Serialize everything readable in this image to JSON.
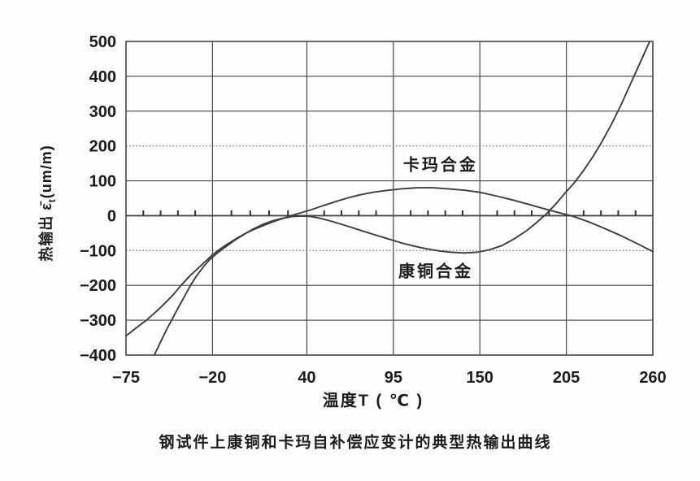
{
  "page": {
    "background": "#fdfdfd"
  },
  "chart_data": {
    "type": "line",
    "title": "钢试件上康铜和卡玛自补偿应变计的典型热输出曲线",
    "xlabel": "温度T ( ℃ )",
    "ylabel": "热输出 ε̄t(um/m)",
    "ylabel_parts": {
      "prefix": "热输出 ",
      "symbol": "ε̄",
      "subscript": "t",
      "unit": "(um/m)"
    },
    "xlim": [
      -75,
      260
    ],
    "ylim": [
      -400,
      500
    ],
    "x_ticks": [
      -75,
      -20,
      40,
      95,
      150,
      205,
      260
    ],
    "y_ticks": [
      500,
      400,
      300,
      200,
      100,
      0,
      -100,
      -200,
      -300,
      -400
    ],
    "grid": true,
    "legend_position": "inline-annotations",
    "minor_tick_divisions": 5,
    "dotted_horizontal_gridlines": [
      200,
      -100
    ],
    "axis_color": "#474747",
    "curve_color": "#3d3d3d",
    "text_color": "#1c1c1c",
    "series": [
      {
        "key": "karma-alloy",
        "name": "卡玛合金",
        "label_pos": {
          "x": 125,
          "y": 150
        },
        "points": [
          [
            -75,
            -345
          ],
          [
            -70,
            -327
          ],
          [
            -65,
            -310
          ],
          [
            -62,
            -300
          ],
          [
            -56,
            -276
          ],
          [
            -50,
            -250
          ],
          [
            -45,
            -227
          ],
          [
            -40,
            -200
          ],
          [
            -34,
            -171
          ],
          [
            -28,
            -146
          ],
          [
            -24,
            -129
          ],
          [
            -20,
            -112
          ],
          [
            -15,
            -95
          ],
          [
            -10,
            -80
          ],
          [
            -5,
            -66
          ],
          [
            0,
            -53
          ],
          [
            6,
            -40
          ],
          [
            12,
            -29
          ],
          [
            18,
            -18
          ],
          [
            24,
            -9
          ],
          [
            30,
            0
          ],
          [
            36,
            8
          ],
          [
            42,
            16
          ],
          [
            50,
            28
          ],
          [
            58,
            40
          ],
          [
            66,
            51
          ],
          [
            74,
            60
          ],
          [
            82,
            67
          ],
          [
            90,
            72
          ],
          [
            100,
            77
          ],
          [
            110,
            80
          ],
          [
            120,
            80
          ],
          [
            130,
            77
          ],
          [
            140,
            73
          ],
          [
            150,
            67
          ],
          [
            160,
            57
          ],
          [
            170,
            46
          ],
          [
            180,
            34
          ],
          [
            190,
            21
          ],
          [
            200,
            9
          ],
          [
            210,
            -3
          ],
          [
            220,
            -19
          ],
          [
            230,
            -38
          ],
          [
            240,
            -58
          ],
          [
            250,
            -80
          ],
          [
            260,
            -103
          ]
        ]
      },
      {
        "key": "constantan-alloy",
        "name": "康铜合金",
        "label_pos": {
          "x": 122,
          "y": -155
        },
        "points": [
          [
            -57,
            -400
          ],
          [
            -53,
            -362
          ],
          [
            -49,
            -325
          ],
          [
            -46,
            -300
          ],
          [
            -42,
            -266
          ],
          [
            -38,
            -233
          ],
          [
            -34,
            -200
          ],
          [
            -30,
            -172
          ],
          [
            -26,
            -148
          ],
          [
            -22,
            -127
          ],
          [
            -18,
            -111
          ],
          [
            -14,
            -97
          ],
          [
            -10,
            -84
          ],
          [
            -5,
            -68
          ],
          [
            0,
            -54
          ],
          [
            6,
            -38
          ],
          [
            12,
            -25
          ],
          [
            18,
            -15
          ],
          [
            24,
            -8
          ],
          [
            30,
            -3
          ],
          [
            36,
            -1
          ],
          [
            42,
            -2
          ],
          [
            48,
            -7
          ],
          [
            54,
            -14
          ],
          [
            60,
            -22
          ],
          [
            68,
            -33
          ],
          [
            76,
            -45
          ],
          [
            84,
            -56
          ],
          [
            92,
            -67
          ],
          [
            100,
            -78
          ],
          [
            108,
            -87
          ],
          [
            116,
            -95
          ],
          [
            124,
            -101
          ],
          [
            132,
            -105
          ],
          [
            140,
            -107
          ],
          [
            148,
            -105
          ],
          [
            156,
            -98
          ],
          [
            164,
            -86
          ],
          [
            172,
            -66
          ],
          [
            180,
            -42
          ],
          [
            186,
            -20
          ],
          [
            192,
            4
          ],
          [
            198,
            32
          ],
          [
            204,
            64
          ],
          [
            210,
            94
          ],
          [
            216,
            130
          ],
          [
            222,
            170
          ],
          [
            228,
            215
          ],
          [
            234,
            265
          ],
          [
            240,
            320
          ],
          [
            246,
            380
          ],
          [
            252,
            440
          ],
          [
            258,
            500
          ]
        ]
      }
    ]
  }
}
